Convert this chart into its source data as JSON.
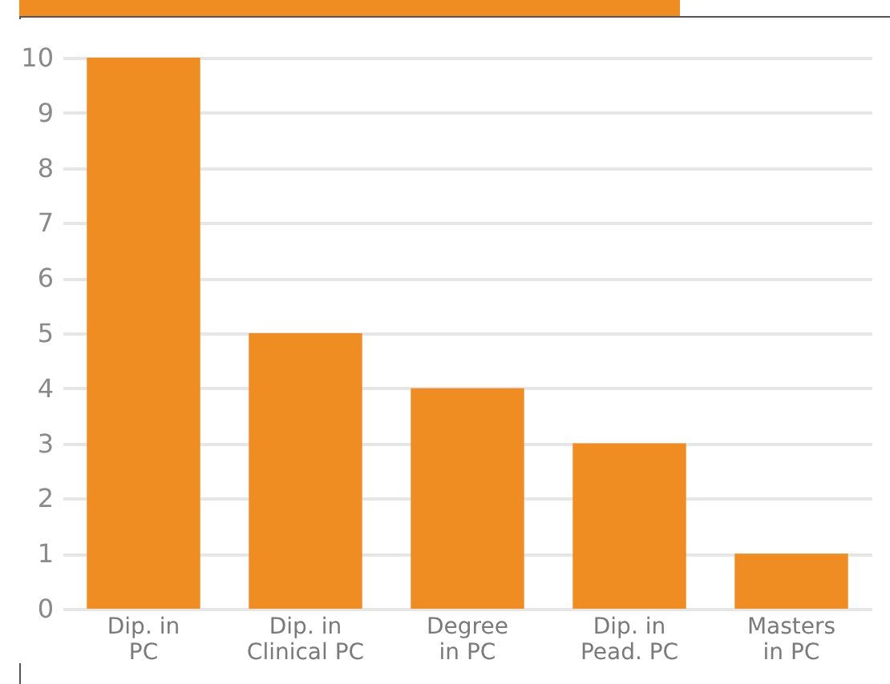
{
  "chart_data": {
    "type": "bar",
    "categories": [
      "Dip. in\nPC",
      "Dip. in\nClinical PC",
      "Degree\nin PC",
      "Dip. in\nPead. PC",
      "Masters\nin PC"
    ],
    "values": [
      10,
      5,
      4,
      3,
      1
    ],
    "color": "#ef8c22",
    "ylim": [
      0,
      10
    ],
    "yticks": [
      0,
      1,
      2,
      3,
      4,
      5,
      6,
      7,
      8,
      9,
      10
    ],
    "grid": "y"
  }
}
